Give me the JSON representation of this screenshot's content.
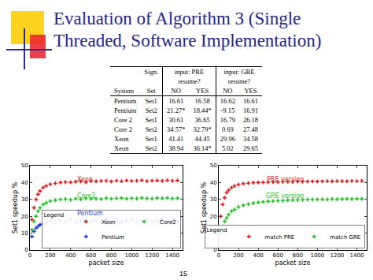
{
  "title": "Evaluation of Algorithm 3 (Single Threaded, Software Implementation)",
  "page_number": "15",
  "table": {
    "sign_label": "Sign.",
    "groups": [
      {
        "label": "input: PRE",
        "sub": "resume?"
      },
      {
        "label": "input: GRE",
        "sub": "resume?"
      }
    ],
    "columns": [
      "System",
      "Set",
      "NO",
      "YES",
      "NO",
      "YES"
    ],
    "rows": [
      [
        "Pentium",
        "Set1",
        "16.61",
        "16.58",
        "16.62",
        "16.61"
      ],
      [
        "Pentium",
        "Set2",
        "21.27*",
        "18.44*",
        "-9.15",
        "16.91"
      ],
      [
        "Core 2",
        "Set1",
        "30.61",
        "36.65",
        "16.79",
        "26.18"
      ],
      [
        "Core 2",
        "Set2",
        "34.57*",
        "32.79*",
        "0.69",
        "27.48"
      ],
      [
        "Xeon",
        "Set1",
        "41.41",
        "44.45",
        "29.96",
        "34.58"
      ],
      [
        "Xeon",
        "Set2",
        "38.94",
        "36.14*",
        "5.02",
        "29.65"
      ]
    ]
  },
  "chart_data": [
    {
      "type": "scatter",
      "x_label": "packet size",
      "y_label": "Set1 speedup %",
      "x": [
        20,
        40,
        60,
        80,
        100,
        130,
        160,
        200,
        250,
        300,
        350,
        400,
        450,
        500,
        550,
        600,
        650,
        700,
        750,
        800,
        850,
        900,
        950,
        1000,
        1050,
        1100,
        1150,
        1200,
        1250,
        1300,
        1350,
        1400,
        1450
      ],
      "series": [
        {
          "name": "Xeon",
          "color": "#e41a1c",
          "marker": "cross",
          "values": [
            18,
            25,
            30,
            33,
            35,
            37,
            38,
            39,
            39.5,
            40,
            40.3,
            40.1,
            40.5,
            40.6,
            40.2,
            40.8,
            40.7,
            40.9,
            41,
            40.6,
            41.1,
            40.8,
            41.2,
            40.9,
            41,
            41.3,
            40.8,
            41.1,
            41.2,
            40.9,
            41.3,
            41,
            41.2
          ]
        },
        {
          "name": "Core2",
          "color": "#22c322",
          "marker": "cross",
          "values": [
            12,
            17,
            20,
            23,
            25,
            27,
            28,
            29,
            29.5,
            30,
            30.2,
            29.8,
            30.4,
            30.1,
            30.6,
            30.3,
            30.5,
            30.2,
            30.7,
            30.4,
            30.6,
            30.8,
            30.3,
            30.7,
            30.5,
            30.9,
            30.6,
            30.4,
            30.8,
            30.6,
            30.9,
            30.5,
            30.7
          ]
        },
        {
          "name": "Pentium",
          "color": "#1f3fd6",
          "marker": "cross",
          "values": [
            8,
            11,
            13,
            14,
            15,
            15.5,
            16,
            17,
            16.2,
            17.5,
            16.8,
            18,
            16.5,
            17.2,
            18.3,
            16.9,
            17.6,
            16.4,
            18.1,
            17,
            17.8,
            16.6,
            17.4,
            18.2,
            16.8,
            17.5,
            17.9,
            16.7,
            17.3,
            18,
            17.1,
            17.6,
            16.9
          ]
        }
      ],
      "annotations": [
        {
          "text": "Xeon",
          "color": "#e41a1c"
        },
        {
          "text": "Core2",
          "color": "#22c322"
        },
        {
          "text": "Pentium",
          "color": "#1f3fd6"
        }
      ],
      "xlim": [
        0,
        1500
      ],
      "ylim": [
        0,
        50
      ],
      "xticks": [
        0,
        200,
        400,
        600,
        800,
        1000,
        1200,
        1400
      ],
      "yticks": [
        0,
        10,
        20,
        30,
        40,
        50
      ],
      "grid": false,
      "legend": "bottom right",
      "legend_title": "Legend"
    },
    {
      "type": "scatter",
      "x_label": "packet size",
      "y_label": "Set1 speedup %",
      "x": [
        20,
        40,
        60,
        80,
        100,
        130,
        160,
        200,
        250,
        300,
        350,
        400,
        450,
        500,
        550,
        600,
        650,
        700,
        750,
        800,
        850,
        900,
        950,
        1000,
        1050,
        1100,
        1150,
        1200,
        1250,
        1300,
        1350,
        1400,
        1450
      ],
      "series": [
        {
          "name": "match PRE",
          "color": "#e41a1c",
          "marker": "cross",
          "values": [
            20,
            27,
            31,
            34,
            35.5,
            37,
            38,
            38.8,
            39.3,
            39.6,
            39.9,
            40,
            40.1,
            40.2,
            40.3,
            40.3,
            40.4,
            40.5,
            40.4,
            40.6,
            40.5,
            40.6,
            40.7,
            40.6,
            40.7,
            40.8,
            40.7,
            40.8,
            40.8,
            40.7,
            40.9,
            40.8,
            40.9
          ]
        },
        {
          "name": "match GRE",
          "color": "#22c322",
          "marker": "cross",
          "values": [
            10,
            14,
            17,
            19,
            21,
            23,
            24,
            25.5,
            26.5,
            27.2,
            27.8,
            28.2,
            28.5,
            28.8,
            29,
            29.2,
            29.3,
            29.5,
            29.6,
            29.7,
            29.8,
            29.9,
            29.9,
            30,
            30.1,
            30,
            30.2,
            30.1,
            30.2,
            30.3,
            30.2,
            30.3,
            30.3
          ]
        }
      ],
      "annotations": [
        {
          "text": "PRE version",
          "color": "#e41a1c"
        },
        {
          "text": "GRE version",
          "color": "#22c322"
        }
      ],
      "xlim": [
        0,
        1500
      ],
      "ylim": [
        0,
        50
      ],
      "xticks": [
        0,
        200,
        400,
        600,
        800,
        1000,
        1200,
        1400
      ],
      "yticks": [
        0,
        10,
        20,
        30,
        40,
        50
      ],
      "grid": false,
      "legend": "bottom right",
      "legend_title": "Legend"
    }
  ]
}
